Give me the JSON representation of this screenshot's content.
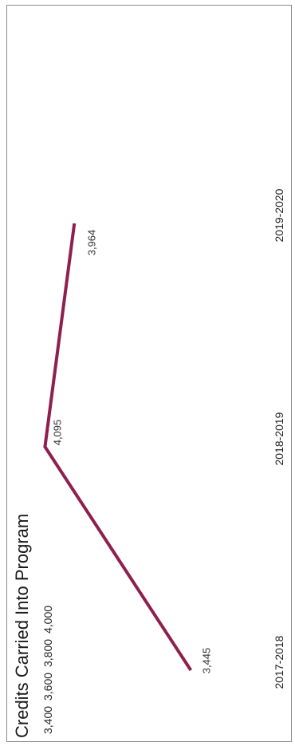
{
  "chart_data": {
    "type": "line",
    "title": "Credits Carried Into Program",
    "categories": [
      "2017-2018",
      "2018-2019",
      "2019-2020"
    ],
    "series": [
      {
        "values": [
          3445,
          4095,
          3964
        ],
        "data_labels": [
          "3,445",
          "4,095",
          "3,964"
        ]
      }
    ],
    "y_ticks": [
      3400,
      3600,
      3800,
      4000
    ],
    "y_tick_labels": [
      "3,400",
      "3,600",
      "3,800",
      "4,000"
    ],
    "ylim": [
      3400,
      4100
    ],
    "grid": false,
    "orientation": "rotated-90",
    "line_color": "#8e1f4f"
  }
}
